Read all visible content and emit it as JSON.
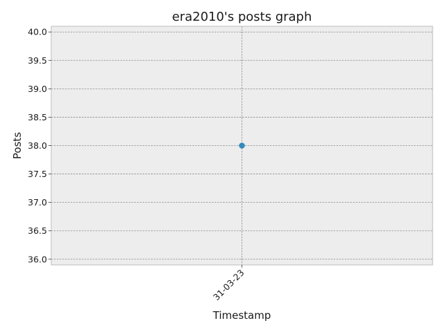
{
  "chart_data": {
    "type": "line",
    "title": "era2010's posts graph",
    "xlabel": "Timestamp",
    "ylabel": "Posts",
    "categories": [
      "31-03-23"
    ],
    "series": [
      {
        "values": [
          38.0
        ]
      }
    ],
    "ylim": [
      35.9,
      40.1
    ],
    "yticks": [
      "36.0",
      "36.5",
      "37.0",
      "37.5",
      "38.0",
      "38.5",
      "39.0",
      "39.5",
      "40.0"
    ],
    "grid": true,
    "colors": {
      "plot_background": "#ededed",
      "grid": "#8c8c8c",
      "frame": "#bcbcbc",
      "series": "#348abd"
    }
  }
}
